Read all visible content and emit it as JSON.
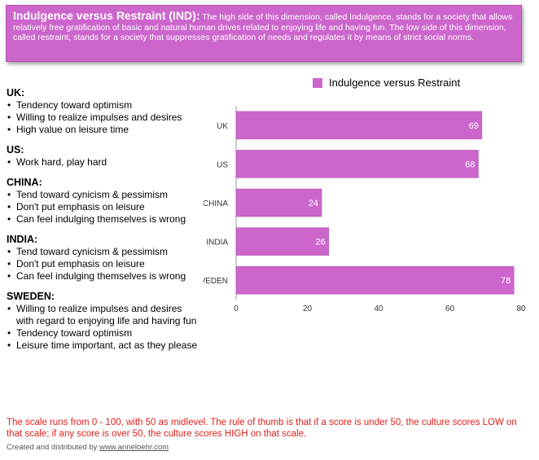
{
  "banner": {
    "title": "Indulgence versus Restraint (IND):",
    "text": "The high side of this dimension, called Indulgence, stands for a society that allows relatively free gratification of basic and natural human drives related to enjoying life and having fun.  The low side of this dimension, called restraint, stands for a society that suppresses gratification of needs and regulates it by means of strict social norms."
  },
  "countries": [
    {
      "name": "UK:",
      "bullets": [
        "Tendency toward optimism",
        "Willing to realize impulses and desires",
        "High value on leisure time"
      ]
    },
    {
      "name": "US:",
      "bullets": [
        "Work hard, play hard"
      ]
    },
    {
      "name": "CHINA:",
      "bullets": [
        "Tend toward cynicism & pessimism",
        "Don't put emphasis on leisure",
        "Can feel indulging themselves is wrong"
      ]
    },
    {
      "name": "INDIA:",
      "bullets": [
        "Tend toward cynicism & pessimism",
        "Don't put emphasis on leisure",
        "Can feel indulging themselves is wrong"
      ]
    },
    {
      "name": "SWEDEN:",
      "bullets": [
        "Willing to realize impulses and desires with regard to enjoying life and having fun",
        "Tendency toward optimism",
        "Leisure time important, act as they please"
      ]
    }
  ],
  "chart_data": {
    "type": "bar",
    "orientation": "horizontal",
    "categories": [
      "UK",
      "US",
      "CHINA",
      "INDIA",
      "SWEDEN"
    ],
    "series": [
      {
        "name": "Indulgence versus Restraint",
        "values": [
          69,
          68,
          24,
          26,
          78
        ]
      }
    ],
    "xlim": [
      0,
      80
    ],
    "xticks": [
      0,
      20,
      40,
      60,
      80
    ],
    "legend": "top",
    "grid": false,
    "bar_color": "#cc66cc"
  },
  "footer": {
    "note": "The scale runs from 0 - 100, with 50 as midlevel. The rule of thumb is that if a score is under 50, the culture scores LOW on that scale; if any score is over 50, the culture scores HIGH on that scale.",
    "credit_prefix": "Created and distributed by ",
    "credit_link": "www.anneloehr.com"
  }
}
